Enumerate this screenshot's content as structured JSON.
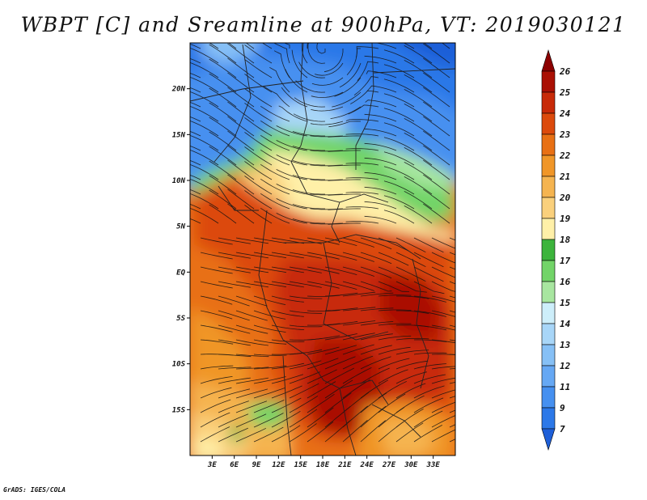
{
  "chart_data": {
    "type": "heatmap",
    "title": "WBPT [C] and Sreamline at 900hPa, VT: 2019030121",
    "x_ticks": [
      "3E",
      "6E",
      "9E",
      "12E",
      "15E",
      "18E",
      "21E",
      "24E",
      "27E",
      "30E",
      "33E"
    ],
    "x_tick_values": [
      3,
      6,
      9,
      12,
      15,
      18,
      21,
      24,
      27,
      30,
      33
    ],
    "y_ticks": [
      "20N",
      "15N",
      "10N",
      "5N",
      "EQ",
      "5S",
      "10S",
      "15S"
    ],
    "y_tick_values": [
      20,
      15,
      10,
      5,
      0,
      -5,
      -10,
      -15
    ],
    "xlim": [
      0,
      36
    ],
    "ylim": [
      -20,
      25
    ],
    "colorbar": {
      "levels": [
        "7",
        "9",
        "11",
        "12",
        "13",
        "14",
        "15",
        "16",
        "17",
        "18",
        "19",
        "20",
        "21",
        "22",
        "23",
        "24",
        "25",
        "26"
      ],
      "colors": [
        "#1e5fd8",
        "#2c78e8",
        "#4690f0",
        "#66a8f4",
        "#86c0f6",
        "#a8d6f8",
        "#cdeefa",
        "#a8e6a0",
        "#72d468",
        "#3cb43c",
        "#fff0a8",
        "#fad07c",
        "#f5b450",
        "#f09628",
        "#e87014",
        "#dc4a0c",
        "#c82a08",
        "#aa1004",
        "#8c0000"
      ]
    },
    "field_description": "wet bulb potential temperature",
    "footer": "GrADS: IGES/COLA"
  }
}
